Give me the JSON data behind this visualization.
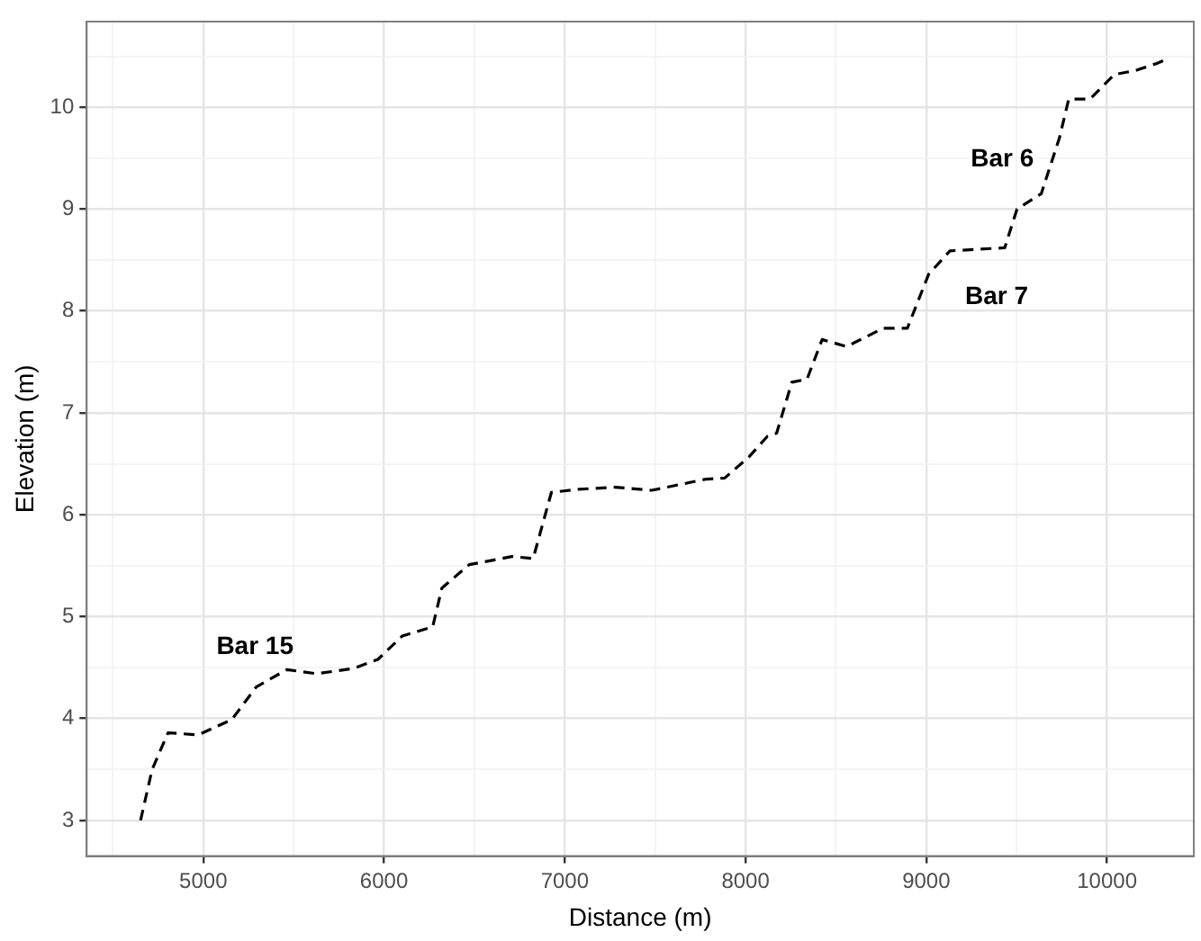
{
  "chart_data": {
    "type": "line",
    "xlabel": "Distance (m)",
    "ylabel": "Elevation (m)",
    "xlim": [
      4355,
      10480
    ],
    "ylim": [
      2.65,
      10.84
    ],
    "xticks": [
      {
        "value": 4500,
        "label": null
      },
      5000,
      {
        "value": 5500,
        "label": null
      },
      6000,
      {
        "value": 6500,
        "label": null
      },
      7000,
      {
        "value": 7500,
        "label": null
      },
      8000,
      {
        "value": 8500,
        "label": null
      },
      9000,
      {
        "value": 9500,
        "label": null
      },
      10000
    ],
    "yticks": [
      3,
      {
        "value": 3.5,
        "label": null
      },
      4,
      {
        "value": 4.5,
        "label": null
      },
      5,
      {
        "value": 5.5,
        "label": null
      },
      6,
      {
        "value": 6.5,
        "label": null
      },
      7,
      {
        "value": 7.5,
        "label": null
      },
      8,
      {
        "value": 8.5,
        "label": null
      },
      9,
      {
        "value": 9.5,
        "label": null
      },
      10,
      {
        "value": 10.5,
        "label": null
      }
    ],
    "grid": true,
    "legend": false,
    "marker": "none",
    "line_style": "dashed",
    "series": [
      {
        "color": "#000000",
        "x": [
          4653,
          4717,
          4805,
          4973,
          5158,
          5293,
          5462,
          5626,
          5828,
          5966,
          6101,
          6269,
          6320,
          6471,
          6707,
          6825,
          6926,
          7078,
          7280,
          7481,
          7784,
          7885,
          8020,
          8121,
          8172,
          8256,
          8340,
          8424,
          8559,
          8761,
          8895,
          9013,
          9131,
          9434,
          9502,
          9636,
          9737,
          9788,
          9906,
          10040,
          10158,
          10276,
          10343
        ],
        "values": [
          3.0,
          3.5,
          3.86,
          3.84,
          3.99,
          4.31,
          4.48,
          4.44,
          4.49,
          4.58,
          4.81,
          4.9,
          5.28,
          5.51,
          5.59,
          5.57,
          6.22,
          6.25,
          6.27,
          6.24,
          6.35,
          6.36,
          6.57,
          6.77,
          6.8,
          7.3,
          7.33,
          7.72,
          7.65,
          7.83,
          7.83,
          8.36,
          8.59,
          8.62,
          9.0,
          9.15,
          9.7,
          10.08,
          10.08,
          10.32,
          10.36,
          10.43,
          10.48
        ]
      }
    ],
    "annotations": [
      "Bar 15",
      "Bar 6",
      "Bar 7"
    ]
  }
}
